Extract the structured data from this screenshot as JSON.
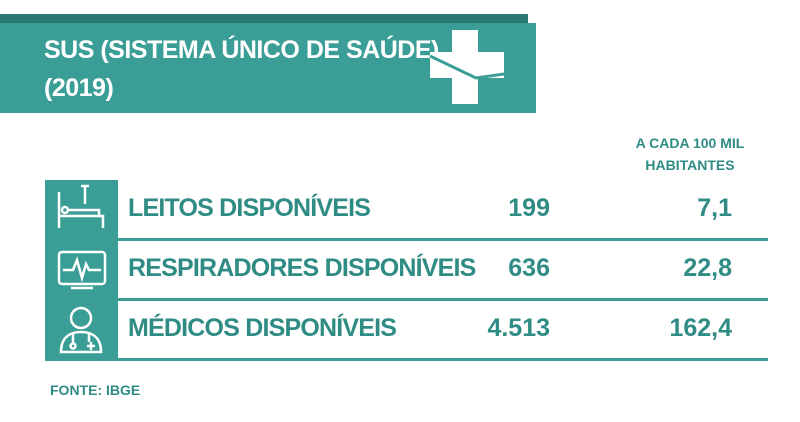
{
  "header": {
    "title": "SUS (SISTEMA ÚNICO DE SAÚDE)",
    "subtitle": "(2019)"
  },
  "table": {
    "column_header": "A CADA 100 MIL HABITANTES",
    "rows": [
      [
        "LEITOS DISPONÍVEIS",
        "199",
        "7,1"
      ],
      [
        "RESPIRADORES DISPONÍVEIS",
        "636",
        "22,8"
      ],
      [
        "MÉDICOS DISPONÍVEIS",
        "4.513",
        "162,4"
      ]
    ]
  },
  "source": "FONTE: IBGE"
}
